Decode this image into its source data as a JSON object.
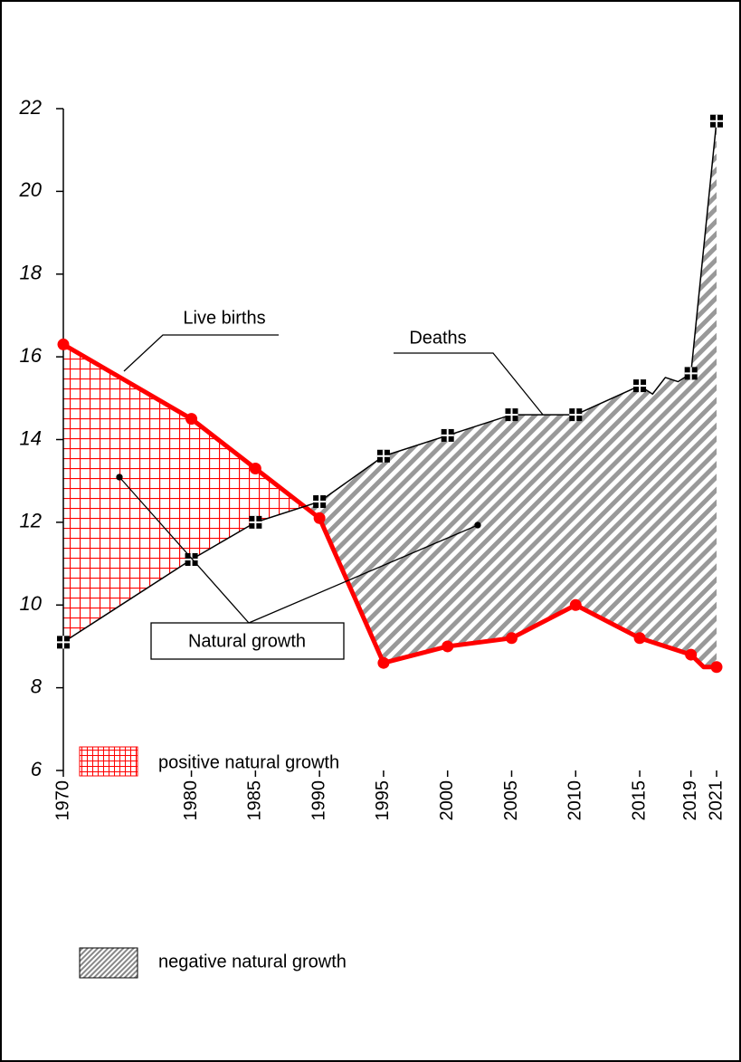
{
  "chart_data": {
    "type": "line",
    "series": [
      {
        "name": "Live births",
        "color": "#ff0000",
        "x": [
          1970,
          1980,
          1985,
          1990,
          1995,
          2000,
          2005,
          2010,
          2015,
          2019,
          2020,
          2021
        ],
        "values": [
          16.3,
          14.5,
          13.3,
          12.1,
          8.6,
          9.0,
          9.2,
          10.0,
          9.2,
          8.8,
          8.5,
          8.5
        ]
      },
      {
        "name": "Deaths",
        "color": "#000000",
        "x": [
          1970,
          1980,
          1985,
          1990,
          1995,
          2000,
          2005,
          2010,
          2015,
          2016,
          2017,
          2018,
          2019,
          2021
        ],
        "values": [
          9.1,
          11.1,
          12.0,
          12.5,
          13.6,
          14.1,
          14.6,
          14.6,
          15.3,
          15.1,
          15.5,
          15.4,
          15.6,
          21.7
        ]
      }
    ],
    "annotations": [
      "Natural growth"
    ],
    "legend": [
      "positive natural growth",
      "negative natural growth"
    ],
    "xlim": [
      1970,
      2021
    ],
    "xticks": [
      1970,
      1980,
      1985,
      1990,
      1995,
      2000,
      2005,
      2010,
      2015,
      2019,
      2021
    ],
    "ylim": [
      6,
      22
    ],
    "yticks": [
      6,
      8,
      10,
      12,
      14,
      16,
      18,
      20,
      22
    ]
  }
}
